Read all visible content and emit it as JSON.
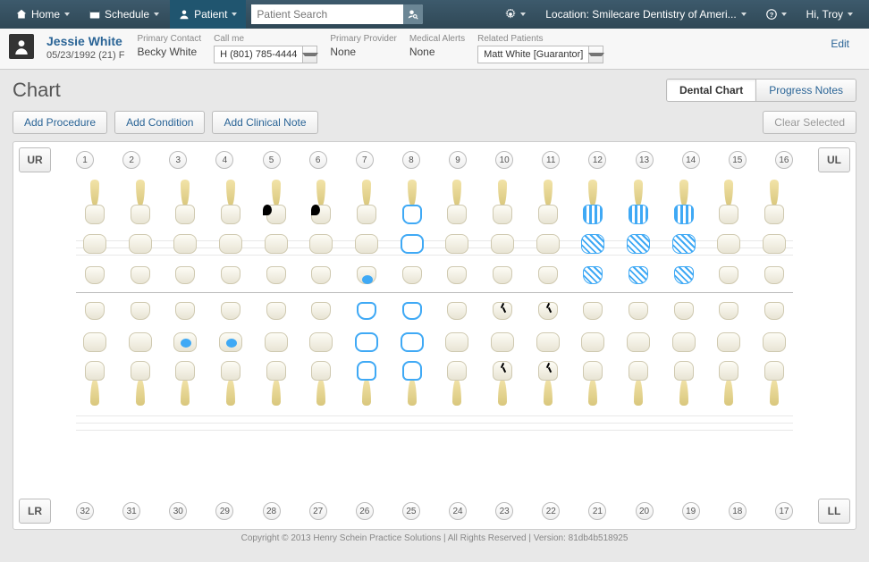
{
  "nav": {
    "home": "Home",
    "schedule": "Schedule",
    "patient": "Patient",
    "search_placeholder": "Patient Search",
    "location": "Location: Smilecare Dentistry of Ameri...",
    "greeting": "Hi,  Troy"
  },
  "patient": {
    "name": "Jessie White",
    "dob": "05/23/1992 (21) F",
    "primary_contact_label": "Primary Contact",
    "primary_contact": "Becky White",
    "callme_label": "Call me",
    "callme": "H (801) 785-4444",
    "primary_provider_label": "Primary Provider",
    "primary_provider": "None",
    "medical_alerts_label": "Medical Alerts",
    "medical_alerts": "None",
    "related_label": "Related Patients",
    "related": "Matt White [Guarantor]",
    "edit": "Edit"
  },
  "chart": {
    "title": "Chart",
    "tab_dental": "Dental Chart",
    "tab_progress": "Progress Notes",
    "add_procedure": "Add Procedure",
    "add_condition": "Add Condition",
    "add_note": "Add Clinical Note",
    "clear": "Clear Selected",
    "quad": {
      "ur": "UR",
      "ul": "UL",
      "lr": "LR",
      "ll": "LL"
    },
    "upper_teeth": [
      "1",
      "2",
      "3",
      "4",
      "5",
      "6",
      "7",
      "8",
      "9",
      "10",
      "11",
      "12",
      "13",
      "14",
      "15",
      "16"
    ],
    "lower_teeth": [
      "32",
      "31",
      "30",
      "29",
      "28",
      "27",
      "26",
      "25",
      "24",
      "23",
      "22",
      "21",
      "20",
      "19",
      "18",
      "17"
    ],
    "conditions": {
      "black_caries": [
        5,
        6
      ],
      "blue_outline_crown": [
        8
      ],
      "blue_fill_ling": [
        7
      ],
      "hatched_crowns": [
        12,
        13,
        14
      ],
      "hatched_occ": [
        12,
        13,
        14
      ],
      "hatched_ling": [
        12,
        13,
        14
      ],
      "lower_blue_occ": [
        30,
        29
      ],
      "lower_blue_outline": [
        26,
        25
      ],
      "lower_cracks": [
        23,
        22
      ]
    },
    "colors": {
      "nav_bg": "#2f4856",
      "active_tab": "#20556f",
      "link": "#2a6496",
      "accent_blue": "#3fa9f5",
      "tooth_enamel": "#f5f2e6",
      "tooth_root": "#e3d28f"
    }
  },
  "footer": "Copyright © 2013 Henry Schein Practice Solutions | All Rights Reserved | Version: 81db4b518925"
}
